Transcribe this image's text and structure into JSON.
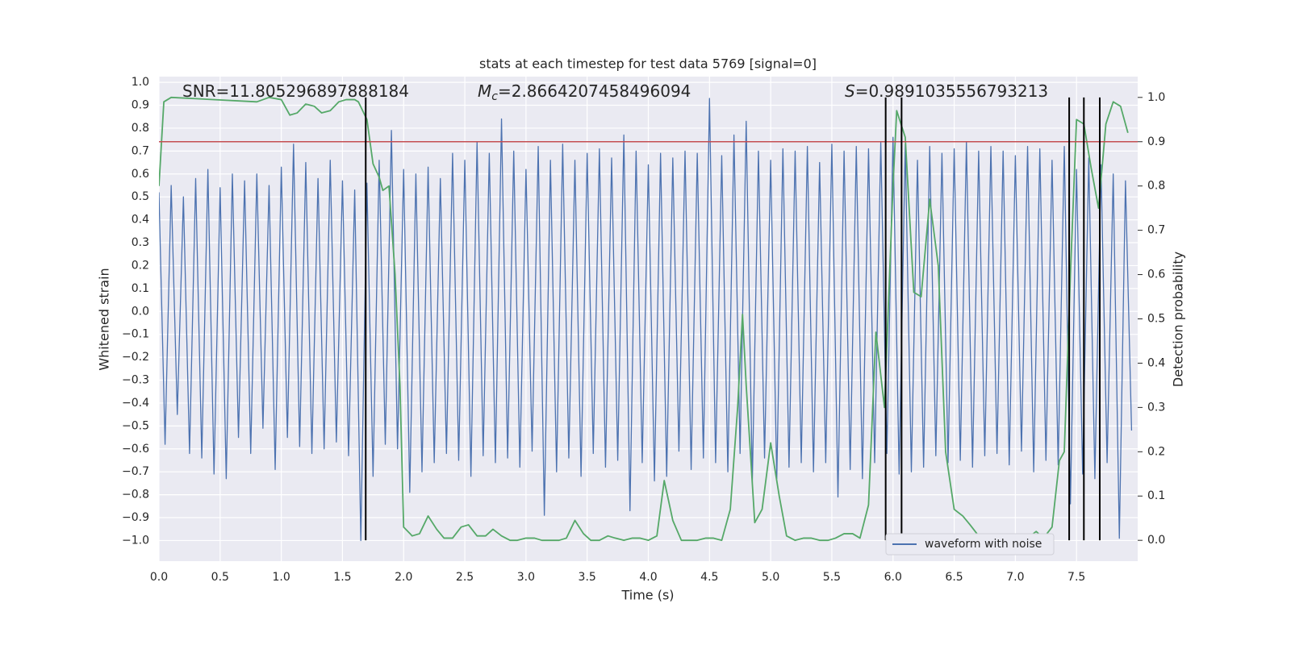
{
  "chart_data": {
    "type": "line",
    "title": "stats at each timestep for test data 5769 [signal=0]",
    "xlabel": "Time (s)",
    "ylabel": "Whitened strain",
    "y2label": "Detection probability",
    "xlim": [
      0,
      8.0
    ],
    "ylim": [
      -1.09,
      1.025
    ],
    "y2lim": [
      -0.047,
      1.047
    ],
    "grid": true,
    "legend": "lower right",
    "xticks": [
      {
        "value": 0,
        "label": "0.0"
      },
      0.5,
      {
        "value": 1,
        "label": "1.0"
      },
      1.5,
      {
        "value": 2,
        "label": "2.0"
      },
      2.5,
      {
        "value": 3,
        "label": "3.0"
      },
      3.5,
      {
        "value": 4,
        "label": "4.0"
      },
      4.5,
      {
        "value": 5,
        "label": "5.0"
      },
      5.5,
      {
        "value": 6,
        "label": "6.0"
      },
      6.5,
      {
        "value": 7,
        "label": "7.0"
      },
      7.5
    ],
    "yticks": [
      {
        "value": -1,
        "label": "−1.0"
      },
      {
        "value": -0.9,
        "label": "−0.9"
      },
      {
        "value": -0.8,
        "label": "−0.8"
      },
      {
        "value": -0.7,
        "label": "−0.7"
      },
      {
        "value": -0.6,
        "label": "−0.6"
      },
      {
        "value": -0.5,
        "label": "−0.5"
      },
      {
        "value": -0.4,
        "label": "−0.4"
      },
      {
        "value": -0.3,
        "label": "−0.3"
      },
      {
        "value": -0.2,
        "label": "−0.2"
      },
      {
        "value": -0.1,
        "label": "−0.1"
      },
      {
        "value": 0,
        "label": "0.0"
      },
      0.1,
      0.2,
      0.3,
      0.4,
      0.5,
      0.6,
      0.7,
      0.8,
      0.9,
      {
        "value": 1,
        "label": "1.0"
      }
    ],
    "y2ticks": [
      {
        "value": 0,
        "label": "0.0"
      },
      0.1,
      0.2,
      0.3,
      0.4,
      0.5,
      0.6,
      0.7,
      0.8,
      0.9,
      {
        "value": 1,
        "label": "1.0"
      }
    ],
    "annotations": [
      {
        "text": "SNR=11.805296897888184"
      },
      {
        "symbol": "M",
        "subscript": "c",
        "text": "=2.8664207458496094"
      },
      {
        "symbol": "S",
        "text": "=0.9891035556793213"
      }
    ],
    "hline": {
      "value": 0.9,
      "axis": "y2",
      "color": "#c44e52"
    },
    "vlines": {
      "x": [
        1.69,
        5.94,
        6.07,
        7.44,
        7.56,
        7.69
      ],
      "ymin": 0,
      "ymax": 1,
      "axis": "y2",
      "color": "#000000"
    },
    "x": [
      0,
      0.05,
      0.1,
      0.15,
      0.2,
      0.25,
      0.3,
      0.35,
      0.4,
      0.45,
      0.5,
      0.55,
      0.6,
      0.65,
      0.7,
      0.75,
      0.8,
      0.85,
      0.9,
      0.95,
      1,
      1.05,
      1.1,
      1.15,
      1.2,
      1.25,
      1.3,
      1.35,
      1.4,
      1.45,
      1.5,
      1.55,
      1.6,
      1.65,
      1.7,
      1.75,
      1.8,
      1.85,
      1.9,
      1.95,
      2,
      2.05,
      2.1,
      2.15,
      2.2,
      2.25,
      2.3,
      2.35,
      2.4,
      2.45,
      2.5,
      2.55,
      2.6,
      2.65,
      2.7,
      2.75,
      2.8,
      2.85,
      2.9,
      2.95,
      3,
      3.05,
      3.1,
      3.15,
      3.2,
      3.25,
      3.3,
      3.35,
      3.4,
      3.45,
      3.5,
      3.55,
      3.6,
      3.65,
      3.7,
      3.75,
      3.8,
      3.85,
      3.9,
      3.95,
      4,
      4.05,
      4.1,
      4.15,
      4.2,
      4.25,
      4.3,
      4.35,
      4.4,
      4.45,
      4.5,
      4.55,
      4.6,
      4.65,
      4.7,
      4.75,
      4.8,
      4.85,
      4.9,
      4.95,
      5,
      5.05,
      5.1,
      5.15,
      5.2,
      5.25,
      5.3,
      5.35,
      5.4,
      5.45,
      5.5,
      5.55,
      5.6,
      5.65,
      5.7,
      5.75,
      5.8,
      5.85,
      5.9,
      5.95,
      6,
      6.05,
      6.1,
      6.15,
      6.2,
      6.25,
      6.3,
      6.35,
      6.4,
      6.45,
      6.5,
      6.55,
      6.6,
      6.65,
      6.7,
      6.75,
      6.8,
      6.85,
      6.9,
      6.95,
      7,
      7.05,
      7.1,
      7.15,
      7.2,
      7.25,
      7.3,
      7.35,
      7.4,
      7.45,
      7.5,
      7.55,
      7.6,
      7.65,
      7.7,
      7.75,
      7.8,
      7.85,
      7.9,
      7.95
    ],
    "series": [
      {
        "name": "waveform with noise",
        "color": "#4c72b0",
        "values": [
          0.52,
          -0.58,
          0.55,
          -0.45,
          0.5,
          -0.62,
          0.58,
          -0.64,
          0.62,
          -0.71,
          0.54,
          -0.73,
          0.6,
          -0.55,
          0.57,
          -0.62,
          0.6,
          -0.51,
          0.55,
          -0.69,
          0.63,
          -0.55,
          0.73,
          -0.59,
          0.65,
          -0.62,
          0.58,
          -0.6,
          0.66,
          -0.57,
          0.57,
          -0.63,
          0.53,
          -1.0,
          0.56,
          -0.72,
          0.66,
          -0.58,
          0.79,
          -0.6,
          0.62,
          -0.79,
          0.6,
          -0.7,
          0.63,
          -0.66,
          0.58,
          -0.62,
          0.69,
          -0.65,
          0.66,
          -0.72,
          0.74,
          -0.63,
          0.69,
          -0.66,
          0.84,
          -0.64,
          0.7,
          -0.68,
          0.62,
          -0.61,
          0.72,
          -0.89,
          0.66,
          -0.7,
          0.73,
          -0.64,
          0.66,
          -0.72,
          0.69,
          -0.62,
          0.71,
          -0.68,
          0.67,
          -0.65,
          0.77,
          -0.87,
          0.7,
          -0.66,
          0.64,
          -0.74,
          0.69,
          -0.72,
          0.67,
          -0.61,
          0.7,
          -0.69,
          0.69,
          -0.64,
          0.93,
          -0.66,
          0.68,
          -0.7,
          0.77,
          -0.62,
          0.83,
          -0.75,
          0.7,
          -0.64,
          0.66,
          -0.73,
          0.71,
          -0.68,
          0.7,
          -0.66,
          0.72,
          -0.7,
          0.65,
          -0.66,
          0.73,
          -0.81,
          0.7,
          -0.69,
          0.72,
          -0.73,
          0.71,
          -0.66,
          0.74,
          -0.62,
          0.76,
          -0.71,
          0.73,
          -0.7,
          0.66,
          -0.68,
          0.72,
          -0.63,
          0.69,
          -0.66,
          0.71,
          -0.65,
          0.74,
          -0.68,
          0.7,
          -0.63,
          0.72,
          -0.62,
          0.7,
          -0.67,
          0.68,
          -0.61,
          0.72,
          -0.7,
          0.71,
          -0.65,
          0.66,
          -0.67,
          0.72,
          -0.84,
          0.62,
          -0.71,
          0.67,
          -0.73,
          0.64,
          -0.66,
          0.6,
          -0.99,
          0.57,
          -0.52
        ]
      },
      {
        "color": "#55a868",
        "axis": "y2",
        "x": [
          0,
          0.04,
          0.1,
          0.8,
          0.9,
          1.0,
          1.07,
          1.13,
          1.2,
          1.27,
          1.33,
          1.4,
          1.47,
          1.53,
          1.6,
          1.63,
          1.7,
          1.75,
          1.8,
          1.83,
          1.88,
          1.93,
          1.97,
          2.0,
          2.07,
          2.13,
          2.2,
          2.27,
          2.33,
          2.4,
          2.47,
          2.53,
          2.6,
          2.67,
          2.73,
          2.8,
          2.87,
          2.93,
          3.0,
          3.07,
          3.13,
          3.2,
          3.27,
          3.33,
          3.4,
          3.47,
          3.53,
          3.6,
          3.67,
          3.73,
          3.8,
          3.87,
          3.93,
          4.0,
          4.07,
          4.13,
          4.2,
          4.27,
          4.33,
          4.4,
          4.47,
          4.53,
          4.6,
          4.67,
          4.73,
          4.77,
          4.8,
          4.87,
          4.93,
          5.0,
          5.07,
          5.13,
          5.2,
          5.27,
          5.33,
          5.4,
          5.47,
          5.53,
          5.6,
          5.67,
          5.73,
          5.8,
          5.86,
          5.93,
          6.0,
          6.03,
          6.1,
          6.17,
          6.23,
          6.3,
          6.37,
          6.43,
          6.5,
          6.57,
          6.63,
          6.7,
          6.77,
          6.83,
          6.9,
          6.97,
          7.03,
          7.1,
          7.17,
          7.23,
          7.3,
          7.36,
          7.4,
          7.45,
          7.5,
          7.56,
          7.62,
          7.68,
          7.74,
          7.8,
          7.86,
          7.92
        ],
        "values": [
          0.8,
          0.99,
          1.0,
          0.99,
          1.0,
          0.995,
          0.96,
          0.965,
          0.985,
          0.98,
          0.965,
          0.97,
          0.99,
          0.995,
          0.995,
          0.99,
          0.95,
          0.85,
          0.82,
          0.79,
          0.8,
          0.6,
          0.35,
          0.03,
          0.01,
          0.015,
          0.055,
          0.025,
          0.005,
          0.005,
          0.03,
          0.035,
          0.01,
          0.01,
          0.025,
          0.01,
          0.0,
          0.0,
          0.005,
          0.005,
          0.0,
          0.0,
          0.0,
          0.005,
          0.045,
          0.015,
          0.0,
          0.0,
          0.01,
          0.005,
          0.0,
          0.005,
          0.005,
          0.0,
          0.01,
          0.135,
          0.045,
          0.0,
          0.0,
          0.0,
          0.005,
          0.005,
          0.0,
          0.07,
          0.3,
          0.51,
          0.35,
          0.04,
          0.07,
          0.22,
          0.1,
          0.01,
          0.0,
          0.005,
          0.005,
          0.0,
          0.0,
          0.005,
          0.015,
          0.015,
          0.005,
          0.08,
          0.47,
          0.3,
          0.8,
          0.97,
          0.91,
          0.56,
          0.55,
          0.77,
          0.62,
          0.2,
          0.07,
          0.055,
          0.035,
          0.01,
          0.005,
          0.0,
          0.0,
          0.0,
          0.0,
          0.005,
          0.02,
          0.005,
          0.03,
          0.18,
          0.2,
          0.6,
          0.95,
          0.94,
          0.84,
          0.75,
          0.94,
          0.99,
          0.98,
          0.92
        ]
      }
    ]
  }
}
